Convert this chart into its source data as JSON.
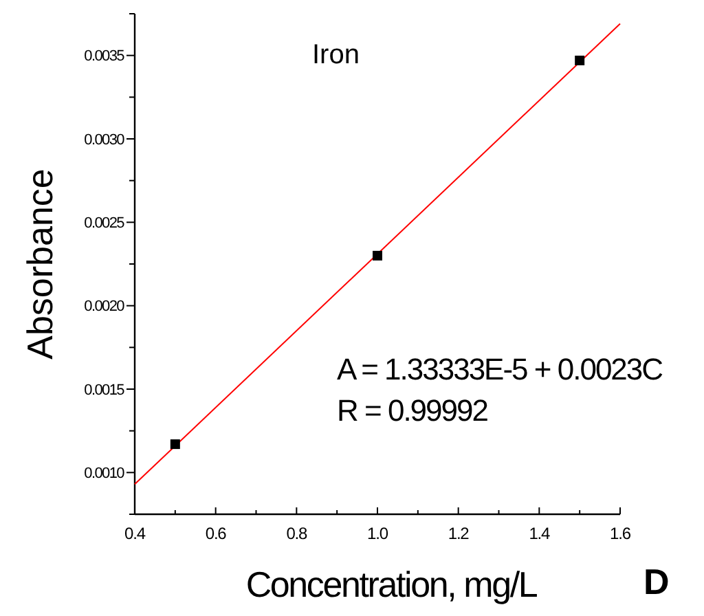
{
  "chart_data": {
    "type": "scatter",
    "title": "Iron",
    "xlabel": "Concentration, mg/L",
    "ylabel": "Absorbance",
    "annotations": [
      "A = 1.33333E-5 + 0.0023C",
      "R = 0.99992",
      "D"
    ],
    "xlim": [
      0.4,
      1.6
    ],
    "xticks": [
      0.4,
      {
        "value": 0.5,
        "label": null
      },
      0.6,
      {
        "value": 0.7,
        "label": null
      },
      0.8,
      {
        "value": 0.9,
        "label": null
      },
      {
        "value": 1.0,
        "label": "1.0"
      },
      {
        "value": 1.1,
        "label": null
      },
      1.2,
      {
        "value": 1.3,
        "label": null
      },
      1.4,
      {
        "value": 1.5,
        "label": null
      },
      1.6
    ],
    "ylim": [
      0.00075,
      0.00375
    ],
    "yticks": [
      {
        "value": 0.00075,
        "label": null
      },
      {
        "value": 0.001,
        "label": "0.0010"
      },
      {
        "value": 0.00125,
        "label": null
      },
      0.0015,
      {
        "value": 0.00175,
        "label": null
      },
      {
        "value": 0.002,
        "label": "0.0020"
      },
      {
        "value": 0.00225,
        "label": null
      },
      0.0025,
      {
        "value": 0.00275,
        "label": null
      },
      {
        "value": 0.003,
        "label": "0.0030"
      },
      {
        "value": 0.00325,
        "label": null
      },
      0.0035,
      {
        "value": 0.00375,
        "label": null
      }
    ],
    "grid": false,
    "series": [
      {
        "type": "line",
        "color": "#ff0000",
        "x": [
          0.4,
          1.6
        ],
        "values": [
          0.00093,
          0.00369
        ]
      },
      {
        "color": "#000000",
        "marker": "square",
        "x": [
          0.5,
          1.0,
          1.5
        ],
        "values": [
          0.00117,
          0.0023,
          0.00347
        ]
      }
    ]
  }
}
